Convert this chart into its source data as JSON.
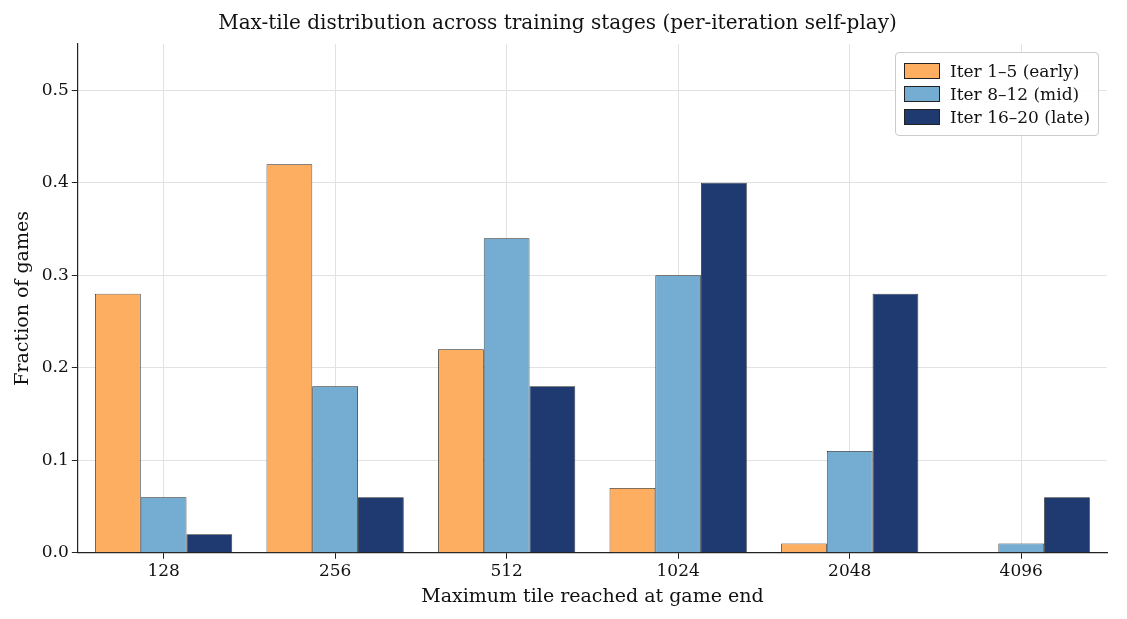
{
  "chart_data": {
    "type": "bar",
    "title": "Max-tile distribution across training stages (per-iteration self-play)",
    "xlabel": "Maximum tile reached at game end",
    "ylabel": "Fraction of games",
    "categories": [
      "128",
      "256",
      "512",
      "1024",
      "2048",
      "4096"
    ],
    "series": [
      {
        "name": "Iter 1–5 (early)",
        "color": "#fdae61",
        "values": [
          0.28,
          0.42,
          0.22,
          0.07,
          0.01,
          0
        ]
      },
      {
        "name": "Iter 8–12 (mid)",
        "color": "#74add1",
        "values": [
          0.06,
          0.18,
          0.34,
          0.3,
          0.11,
          0.01
        ]
      },
      {
        "name": "Iter 16–20 (late)",
        "color": "#1f3a70",
        "values": [
          0.02,
          0.06,
          0.18,
          0.4,
          0.28,
          0.06
        ]
      }
    ],
    "ylim": [
      0,
      0.55
    ],
    "yticks": [
      {
        "value": 0,
        "label": "0.0"
      },
      0.1,
      0.2,
      0.3,
      0.4,
      0.5
    ],
    "grid": true,
    "legend": "top right"
  }
}
